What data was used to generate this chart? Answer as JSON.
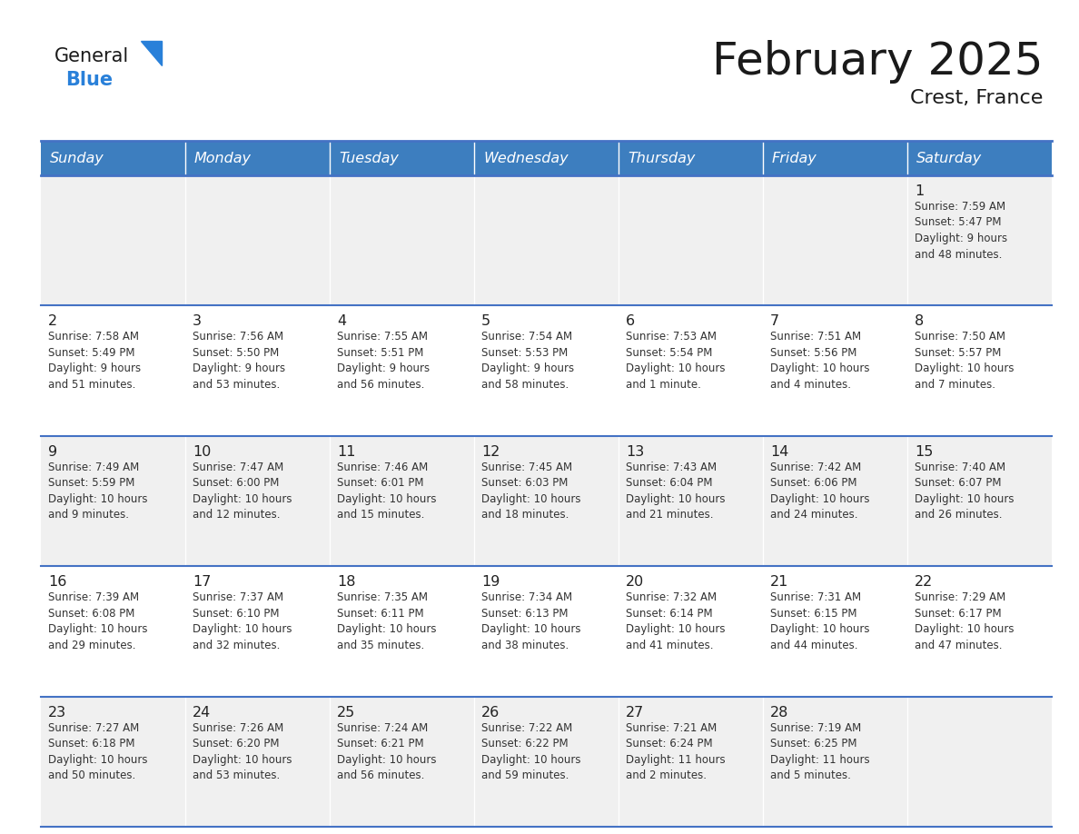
{
  "title": "February 2025",
  "subtitle": "Crest, France",
  "days_of_week": [
    "Sunday",
    "Monday",
    "Tuesday",
    "Wednesday",
    "Thursday",
    "Friday",
    "Saturday"
  ],
  "header_bg": "#3D7EBF",
  "header_text": "#FFFFFF",
  "row_bg_odd": "#F0F0F0",
  "row_bg_even": "#FFFFFF",
  "cell_border_color": "#4472C4",
  "day_num_color": "#222222",
  "text_color": "#333333",
  "logo_color_general": "#1a1a1a",
  "logo_color_blue": "#2980D9",
  "logo_triangle_color": "#2980D9",
  "calendar_data": [
    [
      null,
      null,
      null,
      null,
      null,
      null,
      {
        "day": "1",
        "sunrise": "7:59 AM",
        "sunset": "5:47 PM",
        "daylight_line1": "Daylight: 9 hours",
        "daylight_line2": "and 48 minutes."
      }
    ],
    [
      {
        "day": "2",
        "sunrise": "7:58 AM",
        "sunset": "5:49 PM",
        "daylight_line1": "Daylight: 9 hours",
        "daylight_line2": "and 51 minutes."
      },
      {
        "day": "3",
        "sunrise": "7:56 AM",
        "sunset": "5:50 PM",
        "daylight_line1": "Daylight: 9 hours",
        "daylight_line2": "and 53 minutes."
      },
      {
        "day": "4",
        "sunrise": "7:55 AM",
        "sunset": "5:51 PM",
        "daylight_line1": "Daylight: 9 hours",
        "daylight_line2": "and 56 minutes."
      },
      {
        "day": "5",
        "sunrise": "7:54 AM",
        "sunset": "5:53 PM",
        "daylight_line1": "Daylight: 9 hours",
        "daylight_line2": "and 58 minutes."
      },
      {
        "day": "6",
        "sunrise": "7:53 AM",
        "sunset": "5:54 PM",
        "daylight_line1": "Daylight: 10 hours",
        "daylight_line2": "and 1 minute."
      },
      {
        "day": "7",
        "sunrise": "7:51 AM",
        "sunset": "5:56 PM",
        "daylight_line1": "Daylight: 10 hours",
        "daylight_line2": "and 4 minutes."
      },
      {
        "day": "8",
        "sunrise": "7:50 AM",
        "sunset": "5:57 PM",
        "daylight_line1": "Daylight: 10 hours",
        "daylight_line2": "and 7 minutes."
      }
    ],
    [
      {
        "day": "9",
        "sunrise": "7:49 AM",
        "sunset": "5:59 PM",
        "daylight_line1": "Daylight: 10 hours",
        "daylight_line2": "and 9 minutes."
      },
      {
        "day": "10",
        "sunrise": "7:47 AM",
        "sunset": "6:00 PM",
        "daylight_line1": "Daylight: 10 hours",
        "daylight_line2": "and 12 minutes."
      },
      {
        "day": "11",
        "sunrise": "7:46 AM",
        "sunset": "6:01 PM",
        "daylight_line1": "Daylight: 10 hours",
        "daylight_line2": "and 15 minutes."
      },
      {
        "day": "12",
        "sunrise": "7:45 AM",
        "sunset": "6:03 PM",
        "daylight_line1": "Daylight: 10 hours",
        "daylight_line2": "and 18 minutes."
      },
      {
        "day": "13",
        "sunrise": "7:43 AM",
        "sunset": "6:04 PM",
        "daylight_line1": "Daylight: 10 hours",
        "daylight_line2": "and 21 minutes."
      },
      {
        "day": "14",
        "sunrise": "7:42 AM",
        "sunset": "6:06 PM",
        "daylight_line1": "Daylight: 10 hours",
        "daylight_line2": "and 24 minutes."
      },
      {
        "day": "15",
        "sunrise": "7:40 AM",
        "sunset": "6:07 PM",
        "daylight_line1": "Daylight: 10 hours",
        "daylight_line2": "and 26 minutes."
      }
    ],
    [
      {
        "day": "16",
        "sunrise": "7:39 AM",
        "sunset": "6:08 PM",
        "daylight_line1": "Daylight: 10 hours",
        "daylight_line2": "and 29 minutes."
      },
      {
        "day": "17",
        "sunrise": "7:37 AM",
        "sunset": "6:10 PM",
        "daylight_line1": "Daylight: 10 hours",
        "daylight_line2": "and 32 minutes."
      },
      {
        "day": "18",
        "sunrise": "7:35 AM",
        "sunset": "6:11 PM",
        "daylight_line1": "Daylight: 10 hours",
        "daylight_line2": "and 35 minutes."
      },
      {
        "day": "19",
        "sunrise": "7:34 AM",
        "sunset": "6:13 PM",
        "daylight_line1": "Daylight: 10 hours",
        "daylight_line2": "and 38 minutes."
      },
      {
        "day": "20",
        "sunrise": "7:32 AM",
        "sunset": "6:14 PM",
        "daylight_line1": "Daylight: 10 hours",
        "daylight_line2": "and 41 minutes."
      },
      {
        "day": "21",
        "sunrise": "7:31 AM",
        "sunset": "6:15 PM",
        "daylight_line1": "Daylight: 10 hours",
        "daylight_line2": "and 44 minutes."
      },
      {
        "day": "22",
        "sunrise": "7:29 AM",
        "sunset": "6:17 PM",
        "daylight_line1": "Daylight: 10 hours",
        "daylight_line2": "and 47 minutes."
      }
    ],
    [
      {
        "day": "23",
        "sunrise": "7:27 AM",
        "sunset": "6:18 PM",
        "daylight_line1": "Daylight: 10 hours",
        "daylight_line2": "and 50 minutes."
      },
      {
        "day": "24",
        "sunrise": "7:26 AM",
        "sunset": "6:20 PM",
        "daylight_line1": "Daylight: 10 hours",
        "daylight_line2": "and 53 minutes."
      },
      {
        "day": "25",
        "sunrise": "7:24 AM",
        "sunset": "6:21 PM",
        "daylight_line1": "Daylight: 10 hours",
        "daylight_line2": "and 56 minutes."
      },
      {
        "day": "26",
        "sunrise": "7:22 AM",
        "sunset": "6:22 PM",
        "daylight_line1": "Daylight: 10 hours",
        "daylight_line2": "and 59 minutes."
      },
      {
        "day": "27",
        "sunrise": "7:21 AM",
        "sunset": "6:24 PM",
        "daylight_line1": "Daylight: 11 hours",
        "daylight_line2": "and 2 minutes."
      },
      {
        "day": "28",
        "sunrise": "7:19 AM",
        "sunset": "6:25 PM",
        "daylight_line1": "Daylight: 11 hours",
        "daylight_line2": "and 5 minutes."
      },
      null
    ]
  ]
}
